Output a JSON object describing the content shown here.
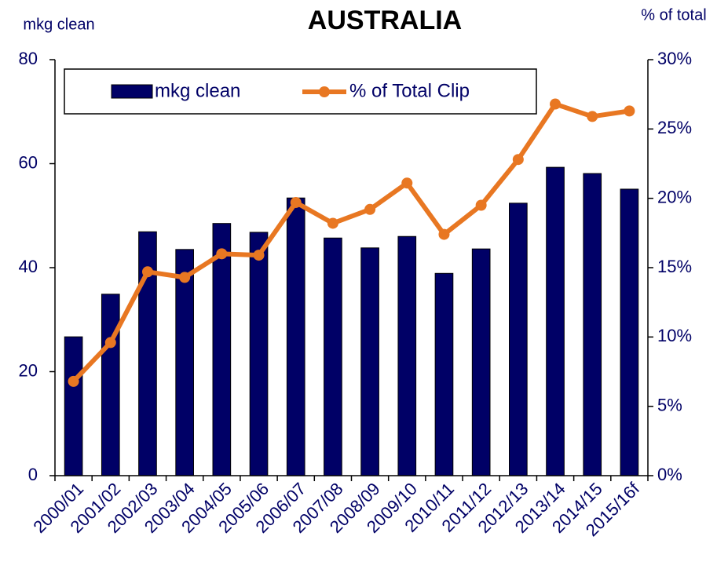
{
  "chart_data": {
    "type": "bar_line",
    "title": "AUSTRALIA",
    "y_label": "mkg clean",
    "y2_label": "% of total",
    "categories": [
      "2000/01",
      "2001/02",
      "2002/03",
      "2003/04",
      "2004/05",
      "2005/06",
      "2006/07",
      "2007/08",
      "2008/09",
      "2009/10",
      "2010/11",
      "2011/12",
      "2012/13",
      "2013/14",
      "2014/15",
      "2015/16f"
    ],
    "series": [
      {
        "name": "mkg clean",
        "type": "bar",
        "color": "#000066",
        "values": [
          26.7,
          34.9,
          46.9,
          43.5,
          48.5,
          46.8,
          53.4,
          45.7,
          43.8,
          46.0,
          38.9,
          43.6,
          52.4,
          59.3,
          58.1,
          55.1
        ]
      },
      {
        "name": "% of Total Clip",
        "type": "line",
        "axis": "y2",
        "color": "#e87722",
        "values": [
          6.8,
          9.6,
          14.7,
          14.3,
          16.0,
          15.9,
          19.7,
          18.2,
          19.2,
          21.1,
          17.4,
          19.5,
          22.8,
          26.8,
          25.9,
          26.3
        ]
      }
    ],
    "ylim": [
      0,
      80
    ],
    "yticks": [
      0,
      20,
      40,
      60,
      80
    ],
    "y2lim": [
      0,
      30
    ],
    "y2ticks": [
      {
        "value": 0,
        "label": "0%"
      },
      {
        "value": 5,
        "label": "5%"
      },
      {
        "value": 10,
        "label": "10%"
      },
      {
        "value": 15,
        "label": "15%"
      },
      {
        "value": 20,
        "label": "20%"
      },
      {
        "value": 25,
        "label": "25%"
      },
      {
        "value": 30,
        "label": "30%"
      }
    ],
    "legend": "top"
  }
}
